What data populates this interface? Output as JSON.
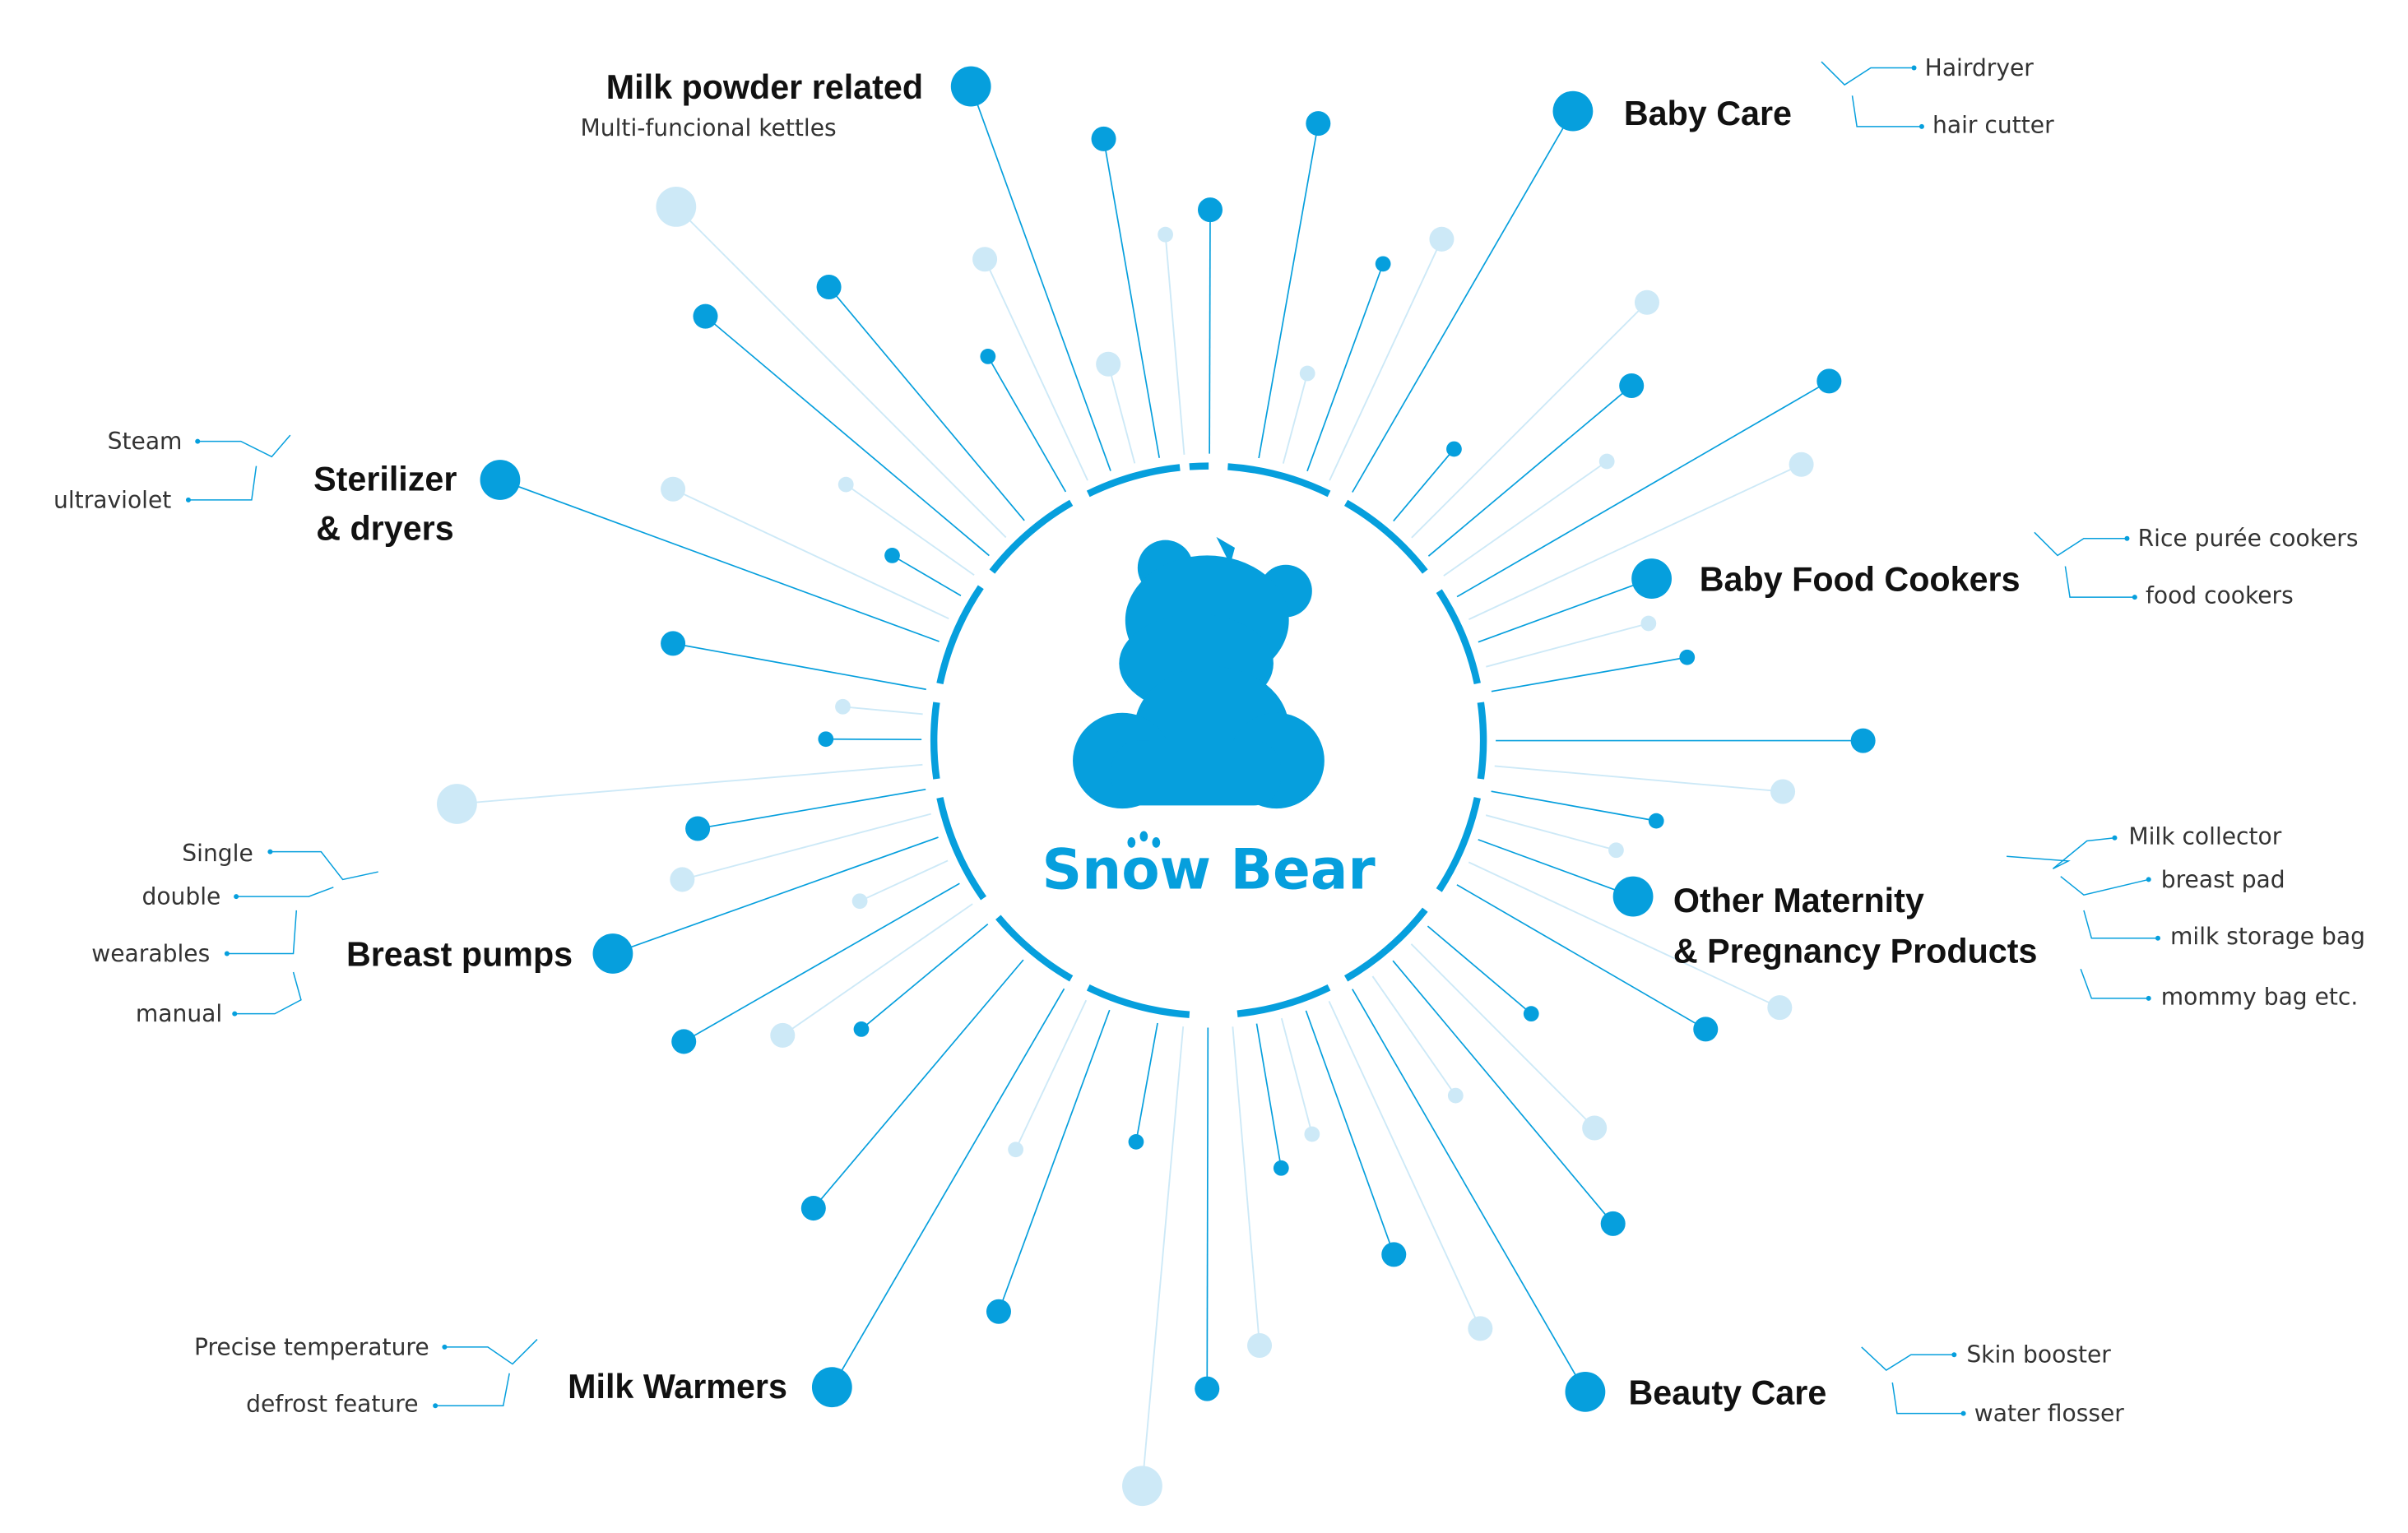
{
  "brand": {
    "name": "Snow Bear",
    "color": "#069fdd",
    "light_color": "#cde9f7"
  },
  "categories": {
    "milk_powder": {
      "title": "Milk powder related",
      "items": [
        "Multi-funcional kettles"
      ]
    },
    "baby_care": {
      "title": "Baby Care",
      "items": [
        "Hairdryer",
        "hair cutter"
      ]
    },
    "sterilizer": {
      "title_line1": "Sterilizer",
      "title_line2": "& dryers",
      "items": [
        "Steam",
        "ultraviolet"
      ]
    },
    "baby_food": {
      "title": "Baby Food Cookers",
      "items": [
        "Rice purée cookers",
        "food cookers"
      ]
    },
    "maternity": {
      "title_line1": "Other Maternity",
      "title_line2": "& Pregnancy Products",
      "items": [
        "Milk collector",
        "breast pad",
        "milk storage bag",
        "mommy bag etc."
      ]
    },
    "breast_pumps": {
      "title": "Breast pumps",
      "items": [
        "Single",
        "double",
        "wearables",
        "manual"
      ]
    },
    "milk_warmers": {
      "title": "Milk Warmers",
      "items": [
        "Precise temperature",
        "defrost feature"
      ]
    },
    "beauty_care": {
      "title": "Beauty Care",
      "items": [
        "Skin booster",
        "water flosser"
      ]
    }
  }
}
